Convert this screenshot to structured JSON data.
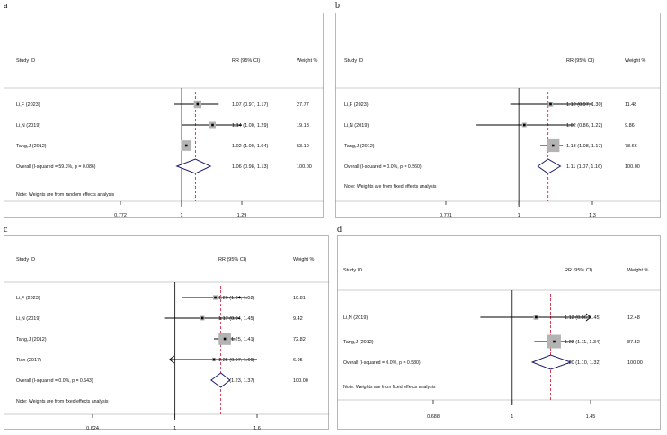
{
  "panels": [
    {
      "letter": "a",
      "header": {
        "study": "Study ID",
        "rr": "RR (95% CI)",
        "weight": "Weight %"
      },
      "note": "Note: Weights are from random effects analysis",
      "axis": {
        "min": 0.772,
        "max": 1.29,
        "ticks": [
          "0.772",
          "1",
          "1.29"
        ],
        "tick_values": [
          0.772,
          1,
          1.29
        ],
        "log": true
      },
      "overall_line": 1.06,
      "studies": [
        {
          "label": "Li,F (2023)",
          "rr": 1.07,
          "lo": 0.97,
          "hi": 1.17,
          "rr_text": "1.07 (0.97, 1.17)",
          "weight": 27.77,
          "weight_text": "27.77"
        },
        {
          "label": "Li,N (2019)",
          "rr": 1.14,
          "lo": 1.0,
          "hi": 1.29,
          "rr_text": "1.14 (1.00, 1.29)",
          "weight": 19.13,
          "weight_text": "19.13"
        },
        {
          "label": "Tang,J (2012)",
          "rr": 1.02,
          "lo": 1.0,
          "hi": 1.04,
          "rr_text": "1.02 (1.00, 1.04)",
          "weight": 53.1,
          "weight_text": "53.10"
        }
      ],
      "overall": {
        "label": "Overall  (I-squared = 59.3%, p = 0.086)",
        "rr": 1.06,
        "lo": 0.98,
        "hi": 1.13,
        "rr_text": "1.06 (0.98, 1.13)",
        "weight_text": "100.00"
      }
    },
    {
      "letter": "b",
      "header": {
        "study": "Study ID",
        "rr": "RR (95% CI)",
        "weight": "Weight %"
      },
      "note": "Note: Weights are from fixed effects analysis",
      "axis": {
        "min": 0.771,
        "max": 1.3,
        "ticks": [
          "0.771",
          "1",
          "1.3"
        ],
        "tick_values": [
          0.771,
          1,
          1.3
        ],
        "log": true
      },
      "overall_line": 1.11,
      "studies": [
        {
          "label": "Li,F (2023)",
          "rr": 1.12,
          "lo": 0.97,
          "hi": 1.3,
          "rr_text": "1.12 (0.97, 1.30)",
          "weight": 11.48,
          "weight_text": "11.48"
        },
        {
          "label": "Li,N (2019)",
          "rr": 1.02,
          "lo": 0.86,
          "hi": 1.22,
          "rr_text": "1.02 (0.86, 1.22)",
          "weight": 9.86,
          "weight_text": "9.86"
        },
        {
          "label": "Tang,J (2012)",
          "rr": 1.13,
          "lo": 1.08,
          "hi": 1.17,
          "rr_text": "1.13 (1.08, 1.17)",
          "weight": 78.66,
          "weight_text": "78.66"
        }
      ],
      "overall": {
        "label": "Overall  (I-squared = 0.0%, p = 0.560)",
        "rr": 1.11,
        "lo": 1.07,
        "hi": 1.16,
        "rr_text": "1.11 (1.07, 1.16)",
        "weight_text": "100.00"
      }
    },
    {
      "letter": "c",
      "header": {
        "study": "Study ID",
        "rr": "RR (95% CI)",
        "weight": "Weight %"
      },
      "note": "Note: Weights are from fixed effects analysis",
      "axis": {
        "min": 0.624,
        "max": 1.6,
        "ticks": [
          "0.624",
          "1",
          "1.6"
        ],
        "tick_values": [
          0.624,
          1,
          1.6
        ],
        "log": true
      },
      "overall_line": 1.3,
      "studies": [
        {
          "label": "Li,F (2023)",
          "rr": 1.26,
          "lo": 1.04,
          "hi": 1.52,
          "rr_text": "1.26 (1.04, 1.52)",
          "weight": 10.81,
          "weight_text": "10.81"
        },
        {
          "label": "Li,N (2019)",
          "rr": 1.17,
          "lo": 0.94,
          "hi": 1.45,
          "rr_text": "1.17 (0.94, 1.45)",
          "weight": 9.42,
          "weight_text": "9.42"
        },
        {
          "label": "Tang,J (2012)",
          "rr": 1.33,
          "lo": 1.25,
          "hi": 1.41,
          "rr_text": "1.33 (1.25, 1.41)",
          "weight": 72.82,
          "weight_text": "72.82"
        },
        {
          "label": "Tian (2017)",
          "rr": 1.25,
          "lo": 0.97,
          "hi": 1.6,
          "rr_text": "1.25 (0.97, 1.60)",
          "weight": 6.95,
          "weight_text": "6.95",
          "arrow_left": true
        }
      ],
      "overall": {
        "label": "Overall  (I-squared = 0.0%, p = 0.643)",
        "rr": 1.3,
        "lo": 1.23,
        "hi": 1.37,
        "rr_text": "1.30 (1.23, 1.37)",
        "weight_text": "100.00"
      }
    },
    {
      "letter": "d",
      "header": {
        "study": "Study ID",
        "rr": "RR (95% CI)",
        "weight": "Weight %"
      },
      "note": "Note: Weights are from fixed effects analysis",
      "axis": {
        "min": 0.688,
        "max": 1.45,
        "ticks": [
          "0.688",
          "1",
          "1.45"
        ],
        "tick_values": [
          0.688,
          1,
          1.45
        ],
        "log": true
      },
      "overall_line": 1.2,
      "studies": [
        {
          "label": "Li,N (2019)",
          "rr": 1.12,
          "lo": 0.86,
          "hi": 1.45,
          "rr_text": "1.12 (0.86, 1.45)",
          "weight": 12.48,
          "weight_text": "12.48",
          "arrow_right": true
        },
        {
          "label": "Tang,J (2012)",
          "rr": 1.22,
          "lo": 1.11,
          "hi": 1.34,
          "rr_text": "1.22 (1.11, 1.34)",
          "weight": 87.52,
          "weight_text": "87.52"
        }
      ],
      "overall": {
        "label": "Overall  (I-squared = 0.0%, p = 0.580)",
        "rr": 1.2,
        "lo": 1.1,
        "hi": 1.32,
        "rr_text": "1.20 (1.10, 1.32)",
        "weight_text": "100.00"
      }
    }
  ],
  "colors": {
    "ci_line": "#000000",
    "weight_box": "#b3b3b3",
    "overall_diamond": "#1c1c6e",
    "overall_line": "#c8102e",
    "frame": "#9a9a9a"
  },
  "chart_data": [
    {
      "type": "forest",
      "panel": "a",
      "categories": [
        "Li,F (2023)",
        "Li,N (2019)",
        "Tang,J (2012)",
        "Overall"
      ],
      "values": [
        1.07,
        1.14,
        1.02,
        1.06
      ],
      "ci_low": [
        0.97,
        1.0,
        1.0,
        0.98
      ],
      "ci_high": [
        1.17,
        1.29,
        1.04,
        1.13
      ],
      "weights": [
        27.77,
        19.13,
        53.1,
        100.0
      ],
      "xlim": [
        0.772,
        1.29
      ],
      "xscale": "log"
    },
    {
      "type": "forest",
      "panel": "b",
      "categories": [
        "Li,F (2023)",
        "Li,N (2019)",
        "Tang,J (2012)",
        "Overall"
      ],
      "values": [
        1.12,
        1.02,
        1.13,
        1.11
      ],
      "ci_low": [
        0.97,
        0.86,
        1.08,
        1.07
      ],
      "ci_high": [
        1.3,
        1.22,
        1.17,
        1.16
      ],
      "weights": [
        11.48,
        9.86,
        78.66,
        100.0
      ],
      "xlim": [
        0.771,
        1.3
      ],
      "xscale": "log"
    },
    {
      "type": "forest",
      "panel": "c",
      "categories": [
        "Li,F (2023)",
        "Li,N (2019)",
        "Tang,J (2012)",
        "Tian (2017)",
        "Overall"
      ],
      "values": [
        1.26,
        1.17,
        1.33,
        1.25,
        1.3
      ],
      "ci_low": [
        1.04,
        0.94,
        1.25,
        0.97,
        1.23
      ],
      "ci_high": [
        1.52,
        1.45,
        1.41,
        1.6,
        1.37
      ],
      "weights": [
        10.81,
        9.42,
        72.82,
        6.95,
        100.0
      ],
      "xlim": [
        0.624,
        1.6
      ],
      "xscale": "log"
    },
    {
      "type": "forest",
      "panel": "d",
      "categories": [
        "Li,N (2019)",
        "Tang,J (2012)",
        "Overall"
      ],
      "values": [
        1.12,
        1.22,
        1.2
      ],
      "ci_low": [
        0.86,
        1.11,
        1.1
      ],
      "ci_high": [
        1.45,
        1.34,
        1.32
      ],
      "weights": [
        12.48,
        87.52,
        100.0
      ],
      "xlim": [
        0.688,
        1.45
      ],
      "xscale": "log"
    }
  ]
}
